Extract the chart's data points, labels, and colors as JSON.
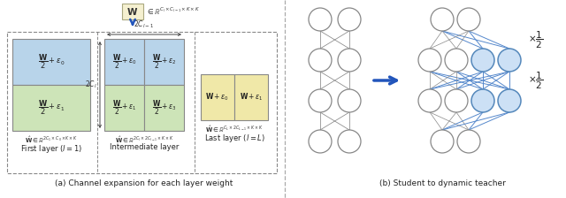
{
  "fig_width": 6.4,
  "fig_height": 2.24,
  "bg_color": "#ffffff",
  "panel_a_caption": "(a) Channel expansion for each layer weight",
  "panel_b_caption": "(b) Student to dynamic teacher",
  "top_box_color": "#f5f0d0",
  "arrow_color": "#2255bb",
  "dashed_border_color": "#888888",
  "blue_cell_color": "#b8d4ea",
  "green_cell_color": "#cde4b8",
  "yellow_cell_color": "#f0e8a8",
  "cell_border_color": "#888888",
  "node_gray_ec": "#888888",
  "node_blue_fc": "#cce0f5",
  "node_blue_ec": "#5588bb",
  "line_gray": "#888888",
  "line_blue": "#5588cc"
}
